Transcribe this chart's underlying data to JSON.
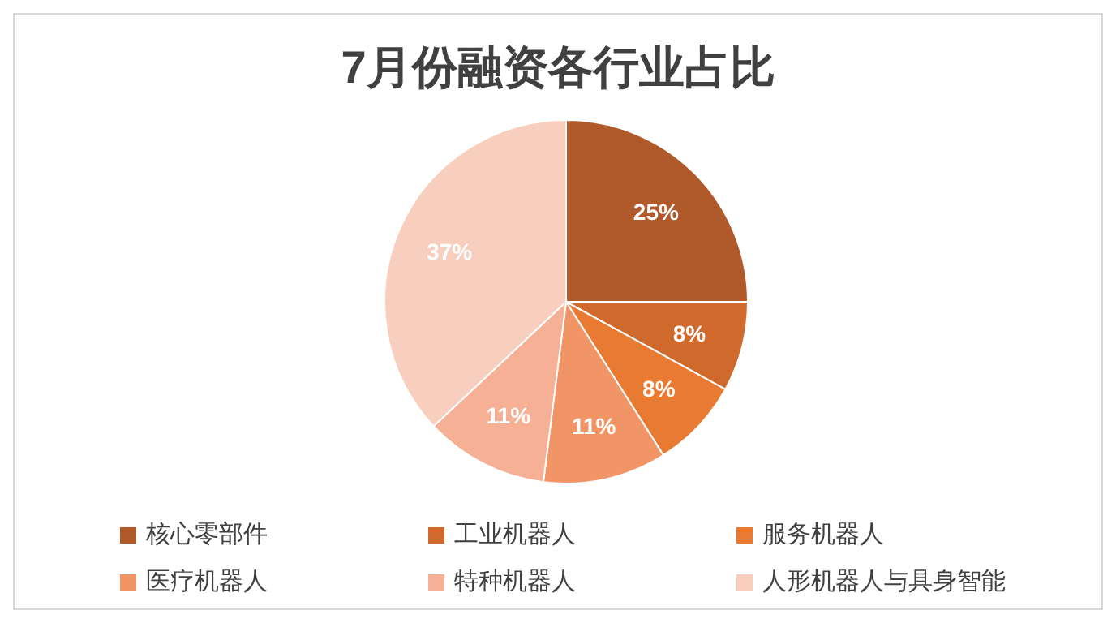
{
  "chart_data": {
    "type": "pie",
    "title": "7月份融资各行业占比",
    "categories": [
      "核心零部件",
      "工业机器人",
      "服务机器人",
      "医疗机器人",
      "特种机器人",
      "人形机器人与具身智能"
    ],
    "values": [
      25,
      8,
      8,
      11,
      11,
      37
    ],
    "value_labels": [
      "25%",
      "8%",
      "8%",
      "11%",
      "11%",
      "37%"
    ],
    "colors": [
      "#b0592a",
      "#cf6a2c",
      "#e87a32",
      "#f19566",
      "#f5b095",
      "#f8cfbf"
    ],
    "legend": "bottom"
  }
}
